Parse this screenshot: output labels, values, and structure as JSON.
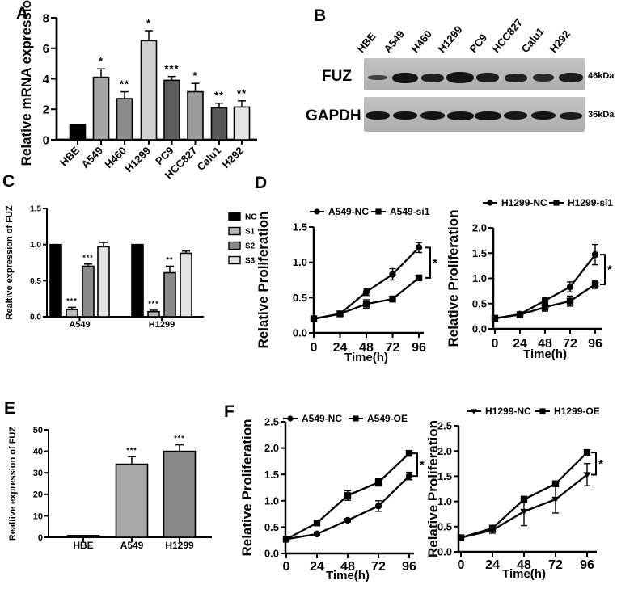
{
  "panels": {
    "a": "A",
    "b": "B",
    "c": "C",
    "d": "D",
    "e": "E",
    "f": "F"
  },
  "western_blot": {
    "lanes": [
      "HBE",
      "A549",
      "H460",
      "H1299",
      "PC9",
      "HCC827",
      "Calu1",
      "H292"
    ],
    "rows": [
      {
        "protein": "FUZ",
        "weight": "46kDa",
        "band_intensities": [
          0.5,
          1.0,
          0.85,
          1.0,
          0.9,
          0.85,
          0.75,
          0.9
        ]
      },
      {
        "protein": "GAPDH",
        "weight": "36kDa",
        "band_intensities": [
          1.0,
          1.0,
          1.0,
          1.0,
          1.0,
          0.95,
          1.0,
          0.9
        ]
      }
    ]
  },
  "chart_data": [
    {
      "id": "A",
      "type": "bar",
      "title": "",
      "xlabel": "",
      "ylabel": "Relative mRNA expression",
      "ylim": [
        0,
        8
      ],
      "yticks": [
        "0",
        "2",
        "4",
        "6",
        "8"
      ],
      "ytick_values": [
        0,
        2,
        4,
        6,
        8
      ],
      "categories": [
        "HBE",
        "A549",
        "H460",
        "H1299",
        "PC9",
        "HCC827",
        "Calu1",
        "H292"
      ],
      "values": [
        1.0,
        4.1,
        2.7,
        6.5,
        3.9,
        3.15,
        2.1,
        2.15
      ],
      "errors": [
        0,
        0.55,
        0.45,
        0.65,
        0.25,
        0.55,
        0.3,
        0.4
      ],
      "significance": [
        "",
        "*",
        "**",
        "*",
        "***",
        "*",
        "**",
        "**"
      ],
      "bar_colors": [
        "#000000",
        "#a4a4a4",
        "#8b8b8b",
        "#d0d0d0",
        "#5e5e5e",
        "#9a9a9a",
        "#585858",
        "#e3e3e3"
      ]
    },
    {
      "id": "C",
      "type": "bar",
      "grouped": true,
      "title": "",
      "xlabel": "",
      "ylabel": "Realtive expression of FUZ",
      "ylim": [
        0,
        1.5
      ],
      "yticks": [
        "0.0",
        "0.5",
        "1.0",
        "1.5"
      ],
      "ytick_values": [
        0,
        0.5,
        1.0,
        1.5
      ],
      "categories": [
        "A549",
        "H1299"
      ],
      "legend_position": "right",
      "series": [
        {
          "name": "NC",
          "color": "#000000",
          "values": [
            1.0,
            1.0
          ],
          "errors": [
            0,
            0
          ],
          "significance": [
            "",
            ""
          ]
        },
        {
          "name": "S1",
          "color": "#b8b8b8",
          "values": [
            0.1,
            0.07
          ],
          "errors": [
            0.03,
            0.02
          ],
          "significance": [
            "***",
            "***"
          ]
        },
        {
          "name": "S2",
          "color": "#8a8a8a",
          "values": [
            0.7,
            0.61
          ],
          "errors": [
            0.03,
            0.09
          ],
          "significance": [
            "***",
            "**"
          ]
        },
        {
          "name": "S3",
          "color": "#e3e3e3",
          "values": [
            0.97,
            0.88
          ],
          "errors": [
            0.06,
            0.03
          ],
          "significance": [
            "",
            ""
          ]
        }
      ]
    },
    {
      "id": "D1",
      "type": "line",
      "title": "",
      "xlabel": "Time(h)",
      "ylabel": "Relative Proliferation",
      "x": [
        0,
        24,
        48,
        72,
        96
      ],
      "xticks": [
        "0",
        "24",
        "48",
        "72",
        "96"
      ],
      "ylim": [
        0,
        1.5
      ],
      "yticks": [
        "0.0",
        "0.5",
        "1.0",
        "1.5"
      ],
      "ytick_values": [
        0,
        0.5,
        1.0,
        1.5
      ],
      "significance": "*",
      "series": [
        {
          "name": "A549-NC",
          "marker": "circle",
          "values": [
            0.2,
            0.27,
            0.58,
            0.83,
            1.21
          ],
          "errors": [
            0.02,
            0.02,
            0.05,
            0.08,
            0.07
          ]
        },
        {
          "name": "A549-si1",
          "marker": "square",
          "values": [
            0.2,
            0.27,
            0.41,
            0.48,
            0.78
          ],
          "errors": [
            0.02,
            0.02,
            0.06,
            0.04,
            0.03
          ]
        }
      ]
    },
    {
      "id": "D2",
      "type": "line",
      "title": "",
      "xlabel": "Time(h)",
      "ylabel": "Relative Proliferation",
      "x": [
        0,
        24,
        48,
        72,
        96
      ],
      "xticks": [
        "0",
        "24",
        "48",
        "72",
        "96"
      ],
      "ylim": [
        0,
        2.0
      ],
      "yticks": [
        "0.0",
        "0.5",
        "1.0",
        "1.5",
        "2.0"
      ],
      "ytick_values": [
        0,
        0.5,
        1.0,
        1.5,
        2.0
      ],
      "significance": "*",
      "series": [
        {
          "name": "H1299-NC",
          "marker": "circle",
          "values": [
            0.21,
            0.29,
            0.56,
            0.83,
            1.47
          ],
          "errors": [
            0.02,
            0.03,
            0.05,
            0.1,
            0.2
          ]
        },
        {
          "name": "H1299-si1",
          "marker": "square",
          "values": [
            0.21,
            0.28,
            0.43,
            0.55,
            0.88
          ],
          "errors": [
            0.02,
            0.03,
            0.08,
            0.1,
            0.08
          ]
        }
      ]
    },
    {
      "id": "E",
      "type": "bar",
      "title": "",
      "xlabel": "",
      "ylabel": "Realtive expression of FUZ",
      "ylim": [
        0,
        50
      ],
      "yticks": [
        "0",
        "10",
        "20",
        "30",
        "40",
        "50"
      ],
      "ytick_values": [
        0,
        10,
        20,
        30,
        40,
        50
      ],
      "categories": [
        "HBE",
        "A549",
        "H1299"
      ],
      "values": [
        0.8,
        34,
        40
      ],
      "errors": [
        0,
        3.5,
        3
      ],
      "significance": [
        "",
        "***",
        "***"
      ],
      "bar_colors": [
        "#000000",
        "#a8a8a8",
        "#8a8a8a"
      ]
    },
    {
      "id": "F1",
      "type": "line",
      "title": "",
      "xlabel": "Time(h)",
      "ylabel": "Relative Proliferation",
      "x": [
        0,
        24,
        48,
        72,
        96
      ],
      "xticks": [
        "0",
        "24",
        "48",
        "72",
        "96"
      ],
      "ylim": [
        0,
        2.5
      ],
      "yticks": [
        "0.0",
        "0.5",
        "1.0",
        "1.5",
        "2.0",
        "2.5"
      ],
      "ytick_values": [
        0,
        0.5,
        1.0,
        1.5,
        2.0,
        2.5
      ],
      "significance": "*",
      "series": [
        {
          "name": "A549-NC",
          "marker": "circle",
          "values": [
            0.27,
            0.37,
            0.63,
            0.9,
            1.47
          ],
          "errors": [
            0.02,
            0.03,
            0.03,
            0.1,
            0.07
          ]
        },
        {
          "name": "A549-OE",
          "marker": "square",
          "values": [
            0.27,
            0.58,
            1.1,
            1.35,
            1.9
          ],
          "errors": [
            0.02,
            0.05,
            0.09,
            0.07,
            0.05
          ]
        }
      ]
    },
    {
      "id": "F2",
      "type": "line",
      "title": "",
      "xlabel": "Time(h)",
      "ylabel": "Relative Proliferation",
      "x": [
        0,
        24,
        48,
        72,
        96
      ],
      "xticks": [
        "0",
        "24",
        "48",
        "72",
        "96"
      ],
      "ylim": [
        0,
        2.5
      ],
      "yticks": [
        "0.0",
        "0.5",
        "1.0",
        "1.5",
        "2.0",
        "2.5"
      ],
      "ytick_values": [
        0,
        0.5,
        1.0,
        1.5,
        2.0,
        2.5
      ],
      "significance": "*",
      "series": [
        {
          "name": "H1299-NC",
          "marker": "triangle-down",
          "values": [
            0.28,
            0.43,
            0.8,
            1.04,
            1.53
          ],
          "errors": [
            0.02,
            0.06,
            0.28,
            0.27,
            0.22
          ]
        },
        {
          "name": "H1299-OE",
          "marker": "square",
          "values": [
            0.28,
            0.47,
            1.04,
            1.35,
            1.97
          ],
          "errors": [
            0.02,
            0.04,
            0.06,
            0.05,
            0.05
          ]
        }
      ]
    }
  ]
}
